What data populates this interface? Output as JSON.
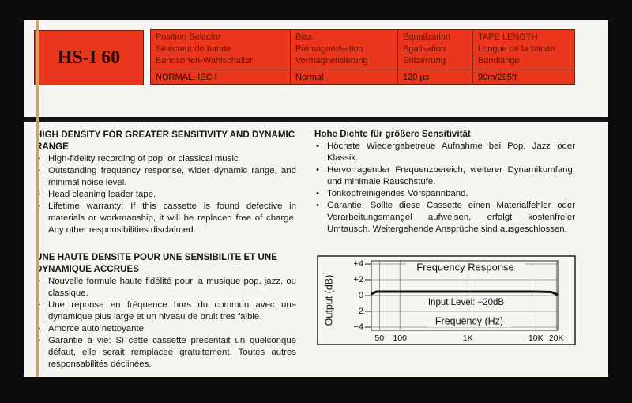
{
  "header": {
    "model": "HS-I 60",
    "columns": [
      {
        "labels": [
          "Position Selector",
          "Sélecteur de bande",
          "Bandsorten-Wahlschalter"
        ],
        "value": "NORMAL, IEC I"
      },
      {
        "labels": [
          "Bias",
          "Prémagnétisation",
          "Vormagnetisierung"
        ],
        "value": "Normal"
      },
      {
        "labels": [
          "Equalization",
          "Egalisation",
          "Entzerrung"
        ],
        "value": "120 µs"
      },
      {
        "labels": [
          "TAPE LENGTH",
          "Longue de la bande",
          "Bandlänge"
        ],
        "value": "90m/295ft"
      }
    ]
  },
  "english": {
    "title": "HIGH DENSITY FOR GREATER SENSITIVITY AND DYNAMIC RANGE",
    "bullets": [
      "High-fidelity recording of pop, or classical music",
      "Outstanding frequency response, wider dynamic range, and minimal noise level.",
      "Head cleaning leader tape.",
      "Lifetime warranty: If this cassette is found defective in materials or workmanship, it will be replaced free of charge. Any other responsibilities disclaimed."
    ]
  },
  "french": {
    "title": "UNE HAUTE DENSITE POUR UNE SENSIBILITE ET UNE DYNAMIQUE ACCRUES",
    "bullets": [
      "Nouvelle formule haute fidélité pour la musique pop, jazz, ou classique.",
      "Une reponse en fréquence hors du commun avec une dynamique plus large et un niveau de bruit tres faible.",
      "Amorce auto nettoyante.",
      "Garantie à vie: Si cette cassette présentait un quelconque défaut, elle serait remplacee gratuitement. Toutes autres responsabilités déclinées."
    ]
  },
  "german": {
    "title": "Hohe Dichte für größere Sensitivität",
    "bullets": [
      "Höchste Wiedergabetreue Aufnahme bei Pop, Jazz oder Klassik.",
      "Hervorragender Frequenzbereich, weiterer Dynamikumfang, und minimale Rauschstufe.",
      "Tonkopfreinigendes Vorspannband.",
      "Garantie: Sollte diese Cassette einen Materialfehler oder Verarbeitungsmangel aufweisen, erfolgt kostenfreier Umtausch. Weitergehende Ansprüche sind ausgeschlossen."
    ]
  },
  "chart_data": {
    "type": "line",
    "title": "Frequency Response",
    "annotation": "Input Level: −20dB",
    "x_label": "Frequency (Hz)",
    "y_label": "Output (dB)",
    "xscale": "log",
    "xlim": [
      38,
      21000
    ],
    "ylim": [
      -4.4,
      4.4
    ],
    "xticks": [
      50,
      100,
      {
        "value": 1000,
        "label": "1K"
      },
      {
        "value": 10000,
        "label": "10K"
      },
      {
        "value": 20000,
        "label": "20K"
      }
    ],
    "yticks": [
      {
        "value": 4,
        "label": "+4"
      },
      {
        "value": 2,
        "label": "+2"
      },
      0,
      {
        "value": -2,
        "label": "−2"
      },
      {
        "value": -4,
        "label": "−4"
      }
    ],
    "grid": true,
    "color": "#111111",
    "x": [
      38,
      45,
      100,
      1000,
      10000,
      17000,
      21000
    ],
    "y": [
      0.2,
      0.5,
      0.5,
      0.5,
      0.5,
      0.45,
      0.1
    ]
  }
}
